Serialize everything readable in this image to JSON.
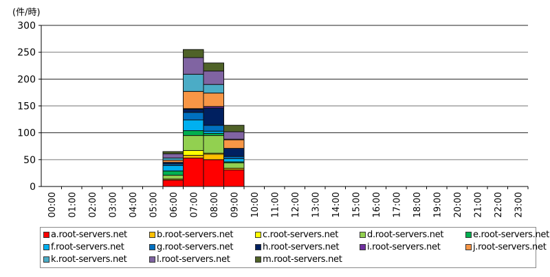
{
  "chart_data": {
    "type": "bar",
    "stacked": true,
    "ylabel": "(件/時)",
    "ylim": [
      0,
      300
    ],
    "yticks": [
      0,
      50,
      100,
      150,
      200,
      250,
      300
    ],
    "grid": true,
    "legend_placement": "bottom",
    "categories": [
      "00:00",
      "01:00",
      "02:00",
      "03:00",
      "04:00",
      "05:00",
      "06:00",
      "07:00",
      "08:00",
      "09:00",
      "10:00",
      "11:00",
      "12:00",
      "13:00",
      "14:00",
      "15:00",
      "16:00",
      "17:00",
      "18:00",
      "19:00",
      "20:00",
      "21:00",
      "22:00",
      "23:00"
    ],
    "series": [
      {
        "name": "a.root-servers.net",
        "color": "#ff0000",
        "values": [
          0,
          0,
          0,
          0,
          0,
          0,
          12,
          53,
          50,
          31,
          0,
          0,
          0,
          0,
          0,
          0,
          0,
          0,
          0,
          0,
          0,
          0,
          0,
          0
        ]
      },
      {
        "name": "b.root-servers.net",
        "color": "#ffc000",
        "values": [
          0,
          0,
          0,
          0,
          0,
          0,
          2,
          5,
          10,
          3,
          0,
          0,
          0,
          0,
          0,
          0,
          0,
          0,
          0,
          0,
          0,
          0,
          0,
          0
        ]
      },
      {
        "name": "c.root-servers.net",
        "color": "#ffff00",
        "values": [
          0,
          0,
          0,
          0,
          0,
          0,
          0,
          9,
          2,
          0,
          0,
          0,
          0,
          0,
          0,
          0,
          0,
          0,
          0,
          0,
          0,
          0,
          0,
          0
        ]
      },
      {
        "name": "d.root-servers.net",
        "color": "#92d050",
        "values": [
          0,
          0,
          0,
          0,
          0,
          0,
          7,
          28,
          33,
          10,
          0,
          0,
          0,
          0,
          0,
          0,
          0,
          0,
          0,
          0,
          0,
          0,
          0,
          0
        ]
      },
      {
        "name": "e.root-servers.net",
        "color": "#00b050",
        "values": [
          0,
          0,
          0,
          0,
          0,
          0,
          8,
          9,
          4,
          2,
          0,
          0,
          0,
          0,
          0,
          0,
          0,
          0,
          0,
          0,
          0,
          0,
          0,
          0
        ]
      },
      {
        "name": "f.root-servers.net",
        "color": "#00b0f0",
        "values": [
          0,
          0,
          0,
          0,
          0,
          0,
          10,
          20,
          4,
          6,
          0,
          0,
          0,
          0,
          0,
          0,
          0,
          0,
          0,
          0,
          0,
          0,
          0,
          0
        ]
      },
      {
        "name": "g.root-servers.net",
        "color": "#0070c0",
        "values": [
          0,
          0,
          0,
          0,
          0,
          0,
          3,
          14,
          11,
          4,
          0,
          0,
          0,
          0,
          0,
          0,
          0,
          0,
          0,
          0,
          0,
          0,
          0,
          0
        ]
      },
      {
        "name": "h.root-servers.net",
        "color": "#002060",
        "values": [
          0,
          0,
          0,
          0,
          0,
          0,
          3,
          6,
          32,
          15,
          0,
          0,
          0,
          0,
          0,
          0,
          0,
          0,
          0,
          0,
          0,
          0,
          0,
          0
        ]
      },
      {
        "name": "i.root-servers.net",
        "color": "#7030a0",
        "values": [
          0,
          0,
          0,
          0,
          0,
          0,
          0,
          1,
          3,
          0,
          0,
          0,
          0,
          0,
          0,
          0,
          0,
          0,
          0,
          0,
          0,
          0,
          0,
          0
        ]
      },
      {
        "name": "j.root-servers.net",
        "color": "#f79646",
        "values": [
          0,
          0,
          0,
          0,
          0,
          0,
          4,
          32,
          25,
          16,
          0,
          0,
          0,
          0,
          0,
          0,
          0,
          0,
          0,
          0,
          0,
          0,
          0,
          0
        ]
      },
      {
        "name": "k.root-servers.net",
        "color": "#4bacc6",
        "values": [
          0,
          0,
          0,
          0,
          0,
          0,
          4,
          32,
          16,
          1,
          0,
          0,
          0,
          0,
          0,
          0,
          0,
          0,
          0,
          0,
          0,
          0,
          0,
          0
        ]
      },
      {
        "name": "l.root-servers.net",
        "color": "#8064a2",
        "values": [
          0,
          0,
          0,
          0,
          0,
          0,
          8,
          31,
          25,
          14,
          0,
          0,
          0,
          0,
          0,
          0,
          0,
          0,
          0,
          0,
          0,
          0,
          0,
          0
        ]
      },
      {
        "name": "m.root-servers.net",
        "color": "#4f6228",
        "values": [
          0,
          0,
          0,
          0,
          0,
          0,
          4,
          15,
          15,
          12,
          0,
          0,
          0,
          0,
          0,
          0,
          0,
          0,
          0,
          0,
          0,
          0,
          0,
          0
        ]
      }
    ]
  }
}
